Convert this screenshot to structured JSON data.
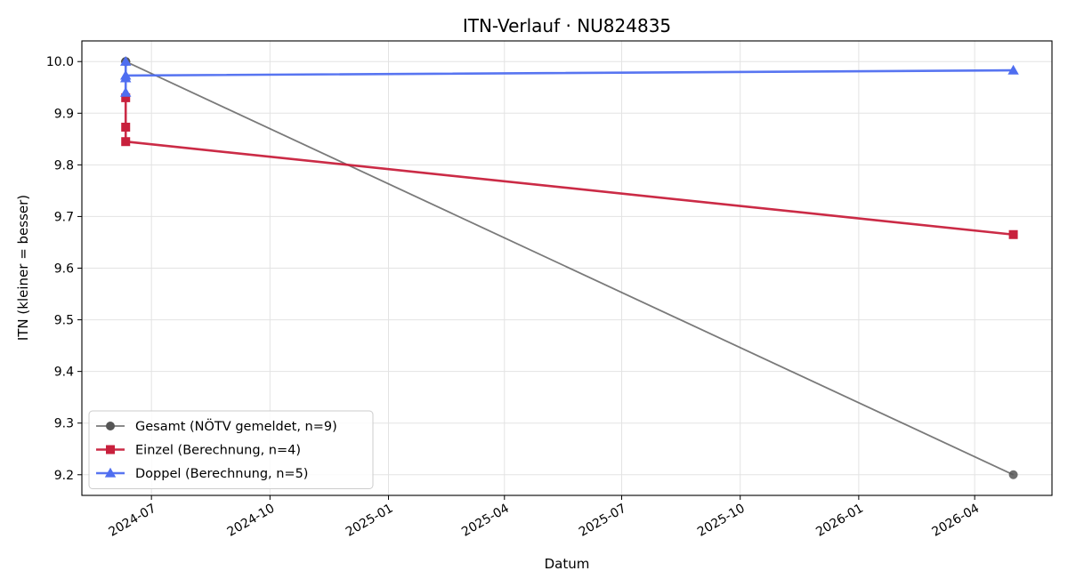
{
  "chart_data": {
    "type": "line",
    "title": "ITN-Verlauf · NU824835",
    "xlabel": "Datum",
    "ylabel": "ITN  (kleiner = besser)",
    "x_type": "date",
    "xlim": [
      "2024-05-08",
      "2026-05-31"
    ],
    "ylim": [
      9.16,
      10.04
    ],
    "x_ticks": [
      "2024-07-01",
      "2024-10-01",
      "2025-01-01",
      "2025-04-01",
      "2025-07-01",
      "2025-10-01",
      "2026-01-01",
      "2026-04-01"
    ],
    "x_tick_labels": [
      "2024-07",
      "2024-10",
      "2025-01",
      "2025-04",
      "2025-07",
      "2025-10",
      "2026-01",
      "2026-04"
    ],
    "y_ticks": [
      9.2,
      9.3,
      9.4,
      9.5,
      9.6,
      9.7,
      9.8,
      9.9,
      10.0
    ],
    "y_tick_labels": [
      "9.2",
      "9.3",
      "9.4",
      "9.5",
      "9.6",
      "9.7",
      "9.8",
      "9.9",
      "10.0"
    ],
    "grid": true,
    "legend_position": "lower-left",
    "series": [
      {
        "name": "Gesamt (NÖTV gemeldet, n=9)",
        "color": "#555555",
        "marker": "circle",
        "points": [
          {
            "x": "2024-06-11",
            "y": 10.0
          },
          {
            "x": "2024-06-11",
            "y": 10.0
          },
          {
            "x": "2024-06-11",
            "y": 10.0
          },
          {
            "x": "2024-06-11",
            "y": 10.0
          },
          {
            "x": "2024-06-11",
            "y": 10.0
          },
          {
            "x": "2024-06-11",
            "y": 10.0
          },
          {
            "x": "2024-06-11",
            "y": 10.0
          },
          {
            "x": "2024-06-11",
            "y": 10.0
          },
          {
            "x": "2026-05-01",
            "y": 9.2
          }
        ]
      },
      {
        "name": "Einzel (Berechnung, n=4)",
        "color": "#c8203c",
        "marker": "square",
        "points": [
          {
            "x": "2024-06-11",
            "y": 9.93
          },
          {
            "x": "2024-06-11",
            "y": 9.873
          },
          {
            "x": "2024-06-11",
            "y": 9.845
          },
          {
            "x": "2026-05-01",
            "y": 9.665
          }
        ]
      },
      {
        "name": "Doppel (Berechnung, n=5)",
        "color": "#4f6ef0",
        "marker": "triangle",
        "points": [
          {
            "x": "2024-06-11",
            "y": 10.0
          },
          {
            "x": "2024-06-11",
            "y": 9.968
          },
          {
            "x": "2024-06-11",
            "y": 9.94
          },
          {
            "x": "2024-06-11",
            "y": 9.973
          },
          {
            "x": "2026-05-01",
            "y": 9.983
          }
        ]
      }
    ]
  }
}
